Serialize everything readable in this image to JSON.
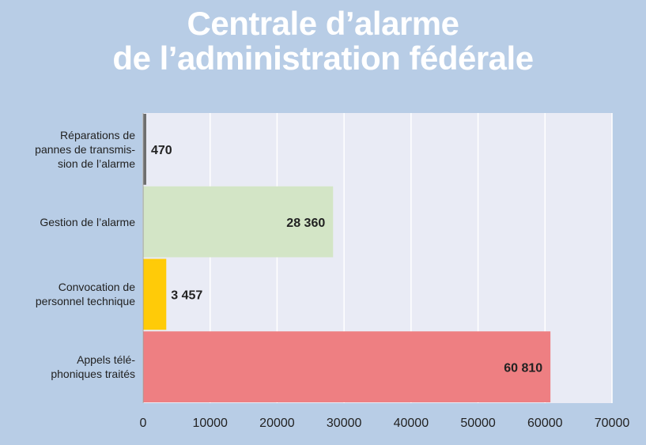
{
  "chart_data": {
    "type": "barh",
    "title": "Centrale d’alarme\nde l’administration fédérale",
    "categories": [
      "Réparations de\npannes de transmis-\nsion de l’alarme",
      "Gestion de l’alarme",
      "Convocation de\npersonnel technique",
      "Appels télé-\nphoniques traités"
    ],
    "values": [
      470,
      28360,
      3457,
      60810
    ],
    "value_labels": [
      "470",
      "28 360",
      "3 457",
      "60 810"
    ],
    "colors": [
      "#6e6e6e",
      "#d3e5c6",
      "#ffcb08",
      "#ee7f82"
    ],
    "xlim": [
      0,
      70000
    ],
    "xticks": [
      0,
      10000,
      20000,
      30000,
      40000,
      50000,
      60000,
      70000
    ],
    "grid": true
  }
}
